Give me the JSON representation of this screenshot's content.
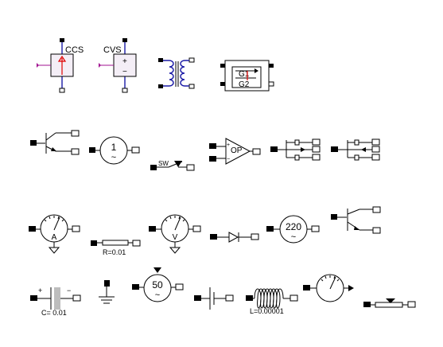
{
  "labels": {
    "ccs": "CCS",
    "cvs": "CVS",
    "cvs_plus": "+",
    "cvs_minus": "−",
    "switch_g1": "G1",
    "switch_g2": "G2",
    "source_1": "1",
    "ac_tilde": "~",
    "sw": "SW",
    "op": "OP",
    "op_plus": "+",
    "op_minus": "−",
    "ammeter": "A",
    "resistor_value": "R=0.01",
    "voltmeter": "V",
    "source_220": "220",
    "capacitor_plus": "+",
    "capacitor_minus": "−",
    "capacitor_value": "C= 0.01",
    "source_50": "50",
    "inductor_value": "L=0.00001"
  }
}
